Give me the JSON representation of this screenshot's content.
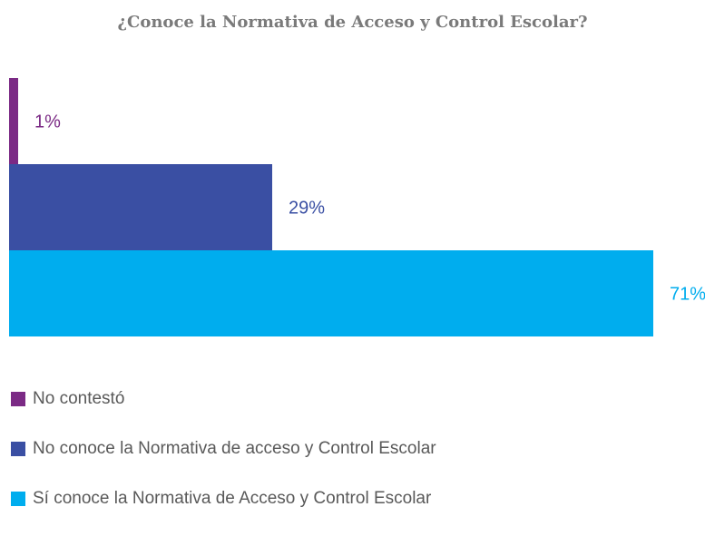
{
  "chart_data": {
    "type": "bar",
    "orientation": "horizontal",
    "title": "¿Conoce la Normativa de Acceso y Control Escolar?",
    "categories": [
      "No contestó",
      "No conoce la Normativa de acceso y Control Escolar",
      "Sí conoce la Normativa de Acceso y Control Escolar"
    ],
    "values": [
      1,
      29,
      71
    ],
    "data_labels": [
      "1%",
      "29%",
      "71%"
    ],
    "colors": [
      "#7b2a85",
      "#3a4fa3",
      "#00adee"
    ],
    "xlim": [
      0,
      100
    ],
    "grid": false,
    "legend_position": "bottom-left"
  }
}
